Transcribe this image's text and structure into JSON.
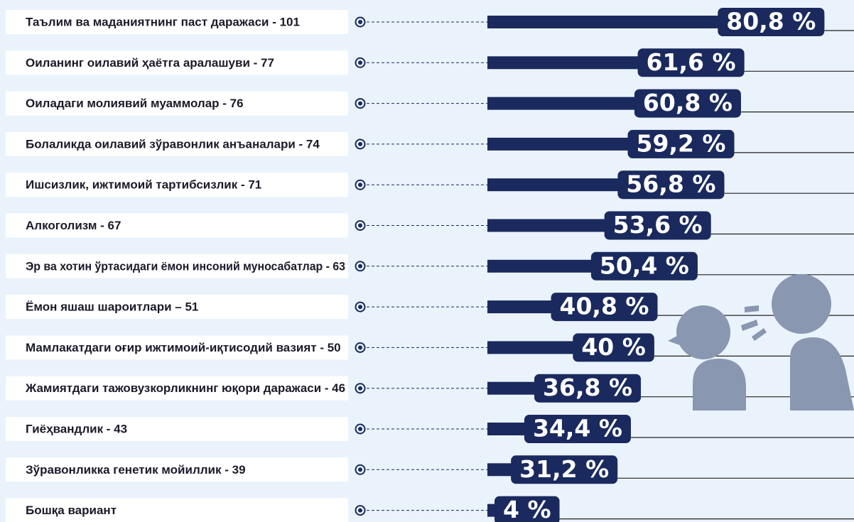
{
  "chart_data": {
    "type": "bar",
    "orientation": "horizontal",
    "color": "#1a2a5e",
    "categories": [
      "Таълим ва маданиятнинг паст даражаси - 101",
      "Оиланинг оилавий ҳаётга аралашуви - 77",
      "Оиладаги молиявий муаммолар - 76",
      "Болаликда оилавий зўравонлик анъаналари - 74",
      "Ишсизлик, ижтимоий тартибсизлик - 71",
      "Алкоголизм - 67",
      "Эр ва хотин ўртасидаги ёмон инсоний муносабатлар - 63",
      "Ёмон яшаш шароитлари – 51",
      "Мамлакатдаги оғир ижтимоий-иқтисодий вазият - 50",
      "Жамиятдаги тажовузкорликнинг юқори даражаси - 46",
      "Гиёҳвандлик - 43",
      "Зўравонликка генетик мойиллик - 39",
      "Бошқа вариант"
    ],
    "values": [
      80.8,
      61.6,
      60.8,
      59.2,
      56.8,
      53.6,
      50.4,
      40.8,
      40,
      36.8,
      34.4,
      31.2,
      4
    ],
    "value_labels": [
      "80,8 %",
      "61,6 %",
      "60,8 %",
      "59,2 %",
      "56,8 %",
      "53,6 %",
      "50,4 %",
      "40,8 %",
      "40 %",
      "36,8 %",
      "34,4 %",
      "31,2 %",
      "4 %"
    ]
  }
}
